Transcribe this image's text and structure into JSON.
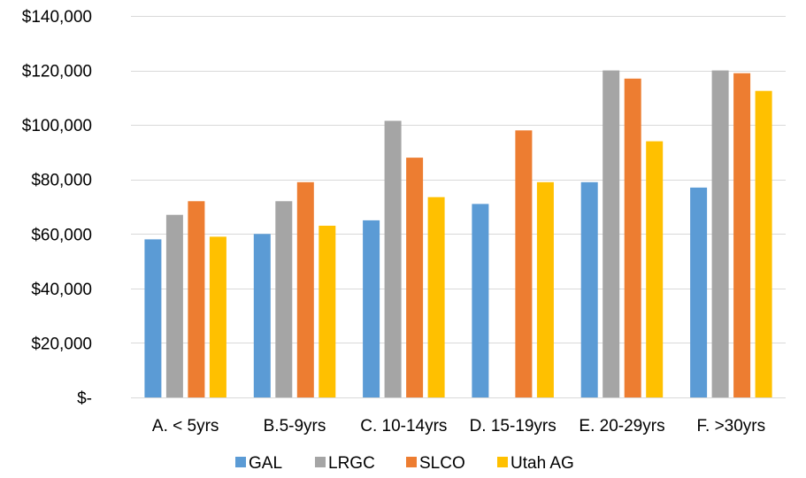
{
  "chart_data": {
    "type": "bar",
    "categories": [
      "A. < 5yrs",
      "B.5-9yrs",
      "C. 10-14yrs",
      "D. 15-19yrs",
      "E. 20-29yrs",
      "F. >30yrs"
    ],
    "series": [
      {
        "name": "GAL",
        "color": "#5B9BD5",
        "values": [
          58000,
          60000,
          65000,
          71000,
          79000,
          77000
        ]
      },
      {
        "name": "LRGC",
        "color": "#A5A5A5",
        "values": [
          67000,
          72000,
          101500,
          null,
          120000,
          120000
        ]
      },
      {
        "name": "SLCO",
        "color": "#ED7D31",
        "values": [
          72000,
          79000,
          88000,
          98000,
          117000,
          119000
        ]
      },
      {
        "name": "Utah AG",
        "color": "#FFC000",
        "values": [
          59000,
          63000,
          73500,
          79000,
          94000,
          112500
        ]
      }
    ],
    "yticks": [
      {
        "value": 0,
        "label": "$-"
      },
      {
        "value": 20000,
        "label": "$20,000"
      },
      {
        "value": 40000,
        "label": "$40,000"
      },
      {
        "value": 60000,
        "label": "$60,000"
      },
      {
        "value": 80000,
        "label": "$80,000"
      },
      {
        "value": 100000,
        "label": "$100,000"
      },
      {
        "value": 120000,
        "label": "$120,000"
      },
      {
        "value": 140000,
        "label": "$140,000"
      }
    ],
    "ylim": [
      0,
      140000
    ],
    "grid": true,
    "legend": "bottom",
    "gridline_color": "#D9D9D9"
  }
}
